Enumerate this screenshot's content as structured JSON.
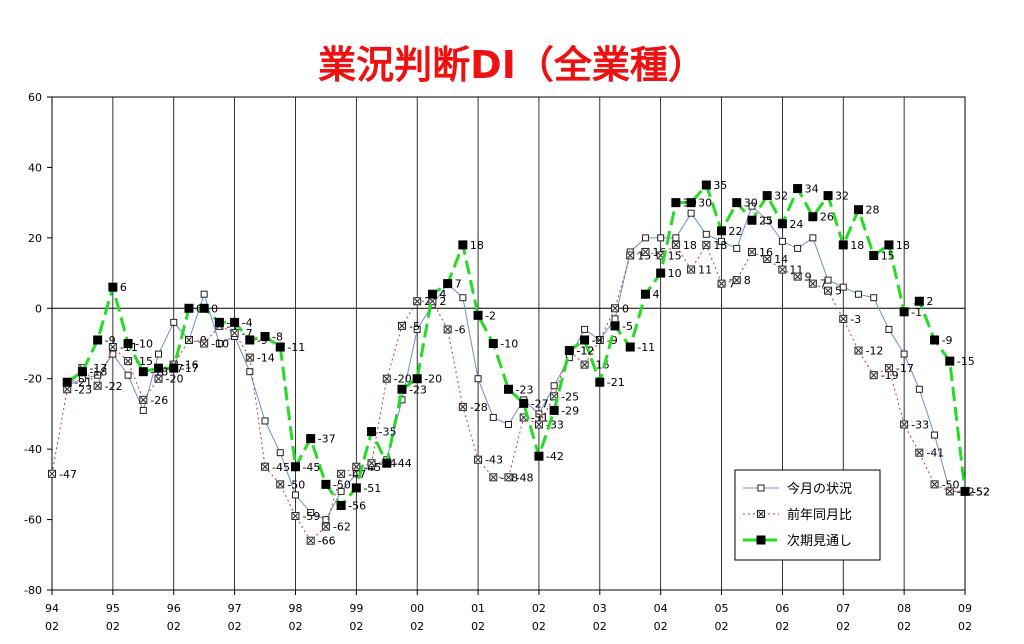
{
  "chart_data": {
    "type": "line",
    "title": "業況判断DI（全業種）",
    "ylim": [
      -80,
      60
    ],
    "yticks": [
      -80,
      -60,
      -40,
      -20,
      0,
      20,
      40,
      60
    ],
    "xticks": [
      "94\n02",
      "95\n02",
      "96\n02",
      "97\n02",
      "98\n02",
      "99\n02",
      "00\n02",
      "01\n02",
      "02\n02",
      "03\n02",
      "04\n02",
      "05\n02",
      "06\n02",
      "07\n02",
      "08\n02",
      "09\n02"
    ],
    "x_start": 1994,
    "x_end": 2009,
    "grid": false,
    "legend_position": "bottom-right",
    "series": [
      {
        "name": "今月の状況",
        "color": "#6a8fd0",
        "style": "solid",
        "marker": "open-square",
        "labeled": false,
        "x": [
          1994.25,
          1994.5,
          1994.75,
          1995.0,
          1995.25,
          1995.5,
          1995.75,
          1996.0,
          1996.25,
          1996.5,
          1996.75,
          1997.0,
          1997.25,
          1997.5,
          1997.75,
          1998.0,
          1998.25,
          1998.5,
          1998.75,
          1999.0,
          1999.25,
          1999.5,
          1999.75,
          2000.0,
          2000.25,
          2000.5,
          2000.75,
          2001.0,
          2001.25,
          2001.5,
          2001.75,
          2002.0,
          2002.25,
          2002.5,
          2002.75,
          2003.0,
          2003.25,
          2003.5,
          2003.75,
          2004.0,
          2004.25,
          2004.5,
          2004.75,
          2005.0,
          2005.25,
          2005.5,
          2005.75,
          2006.0,
          2006.25,
          2006.5,
          2006.75,
          2007.0,
          2007.25,
          2007.5,
          2007.75,
          2008.0,
          2008.25,
          2008.5,
          2008.75,
          2009.0
        ],
        "values": [
          -22,
          -20,
          -19,
          -13,
          -19,
          -29,
          -13,
          -4,
          -9,
          4,
          -10,
          -8,
          -18,
          -32,
          -41,
          -53,
          -58,
          -60,
          -52,
          -47,
          -45,
          -43,
          -26,
          -6,
          1,
          7,
          3,
          -20,
          -31,
          -33,
          -26,
          -30,
          -22,
          -14,
          -6,
          -9,
          -3,
          16,
          20,
          20,
          20,
          27,
          21,
          19,
          17,
          29,
          25,
          19,
          17,
          20,
          8,
          6,
          4,
          3,
          -6,
          -13,
          -23,
          -36,
          -52,
          -52
        ]
      },
      {
        "name": "前年同月比",
        "color": "#cc3333",
        "style": "dotted",
        "marker": "x-square",
        "labeled": true,
        "x": [
          1994.0,
          1994.25,
          1994.5,
          1994.75,
          1995.0,
          1995.25,
          1995.5,
          1995.75,
          1996.0,
          1996.25,
          1996.5,
          1996.75,
          1997.0,
          1997.25,
          1997.5,
          1997.75,
          1998.0,
          1998.25,
          1998.5,
          1998.75,
          1999.0,
          1999.25,
          1999.5,
          1999.75,
          2000.0,
          2000.25,
          2000.5,
          2000.75,
          2001.0,
          2001.25,
          2001.5,
          2001.75,
          2002.0,
          2002.25,
          2002.5,
          2002.75,
          2003.0,
          2003.25,
          2003.5,
          2003.75,
          2004.0,
          2004.25,
          2004.5,
          2004.75,
          2005.0,
          2005.25,
          2005.5,
          2005.75,
          2006.0,
          2006.25,
          2006.5,
          2006.75,
          2007.0,
          2007.25,
          2007.5,
          2007.75,
          2008.0,
          2008.25,
          2008.5,
          2008.75,
          2009.0
        ],
        "values": [
          -47,
          -23,
          -17,
          -22,
          -11,
          -15,
          -26,
          -20,
          -16,
          -9,
          -10,
          -5,
          -7,
          -14,
          -45,
          -50,
          -59,
          -66,
          -62,
          -47,
          -45,
          -44,
          -20,
          -5,
          2,
          2,
          -6,
          -28,
          -43,
          -48,
          -48,
          -31,
          -33,
          -25,
          -12,
          -16,
          -9,
          0,
          15,
          16,
          15,
          18,
          11,
          18,
          7,
          8,
          16,
          14,
          11,
          9,
          7,
          5,
          -3,
          -12,
          -19,
          -17,
          -33,
          -41,
          -50,
          -52,
          -52
        ],
        "labels": [
          "-47",
          "-23",
          "-17",
          "-22",
          "-11",
          "-15",
          "-26",
          "-20",
          "-16",
          "-9",
          "-10",
          "-5",
          "-7",
          "-14",
          "-45",
          "-50",
          "-59",
          "-66",
          "-62",
          "-47",
          "-45",
          "-44",
          "-20",
          "-5",
          "2",
          "2",
          "-6",
          "-28",
          "-43",
          "-48",
          "-48",
          "-31",
          "-33",
          "-25",
          "-12",
          "-16",
          "-9",
          "0",
          "15",
          "16",
          "15",
          "18",
          "11",
          "18",
          "7",
          "8",
          "16",
          "14",
          "11",
          "9",
          "7",
          "5",
          "-3",
          "-12",
          "-19",
          "-17",
          "-33",
          "-41",
          "-50",
          "-52",
          "-52"
        ]
      },
      {
        "name": "次期見通し",
        "color": "#22dd22",
        "style": "dashed",
        "marker": "filled-square",
        "labeled": true,
        "x": [
          1994.25,
          1994.5,
          1994.75,
          1995.0,
          1995.25,
          1995.5,
          1995.75,
          1996.0,
          1996.25,
          1996.5,
          1996.75,
          1997.0,
          1997.25,
          1997.5,
          1997.75,
          1998.0,
          1998.25,
          1998.5,
          1998.75,
          1999.0,
          1999.25,
          1999.5,
          1999.75,
          2000.0,
          2000.25,
          2000.5,
          2000.75,
          2001.0,
          2001.25,
          2001.5,
          2001.75,
          2002.0,
          2002.25,
          2002.5,
          2002.75,
          2003.0,
          2003.25,
          2003.5,
          2003.75,
          2004.0,
          2004.25,
          2004.5,
          2004.75,
          2005.0,
          2005.25,
          2005.5,
          2005.75,
          2006.0,
          2006.25,
          2006.5,
          2006.75,
          2007.0,
          2007.25,
          2007.5,
          2007.75,
          2008.0,
          2008.25,
          2008.5,
          2008.75,
          2009.0
        ],
        "values": [
          -21,
          -18,
          -9,
          6,
          -10,
          -18,
          -17,
          -17,
          0,
          0,
          -4,
          -4,
          -9,
          -8,
          -11,
          -45,
          -37,
          -50,
          -56,
          -51,
          -35,
          -44,
          -23,
          -20,
          4,
          7,
          18,
          -2,
          -10,
          -23,
          -27,
          -42,
          -29,
          -12,
          -9,
          -21,
          -5,
          -11,
          4,
          10,
          30,
          30,
          35,
          22,
          30,
          25,
          32,
          24,
          34,
          26,
          32,
          18,
          28,
          15,
          18,
          -1,
          2,
          -9,
          -15,
          -52
        ],
        "labels": [
          "-21",
          "-18",
          "-9",
          "6",
          "-10",
          "-18",
          "-17",
          "-17",
          "0",
          "0",
          "-4",
          "-4",
          "-9",
          "-8",
          "-11",
          "-45",
          "-37",
          "-50",
          "-56",
          "-51",
          "-35",
          "-44",
          "-23",
          "-20",
          "4",
          "7",
          "18",
          "-2",
          "-10",
          "-23",
          "-27",
          "-42",
          "-29",
          "-12",
          "-9",
          "-21",
          "-5",
          "-11",
          "4",
          "10",
          "30",
          "30",
          "35",
          "22",
          "30",
          "25",
          "32",
          "24",
          "34",
          "26",
          "32",
          "18",
          "28",
          "15",
          "18",
          "-1",
          "2",
          "-9",
          "-15",
          "-52"
        ]
      }
    ]
  }
}
